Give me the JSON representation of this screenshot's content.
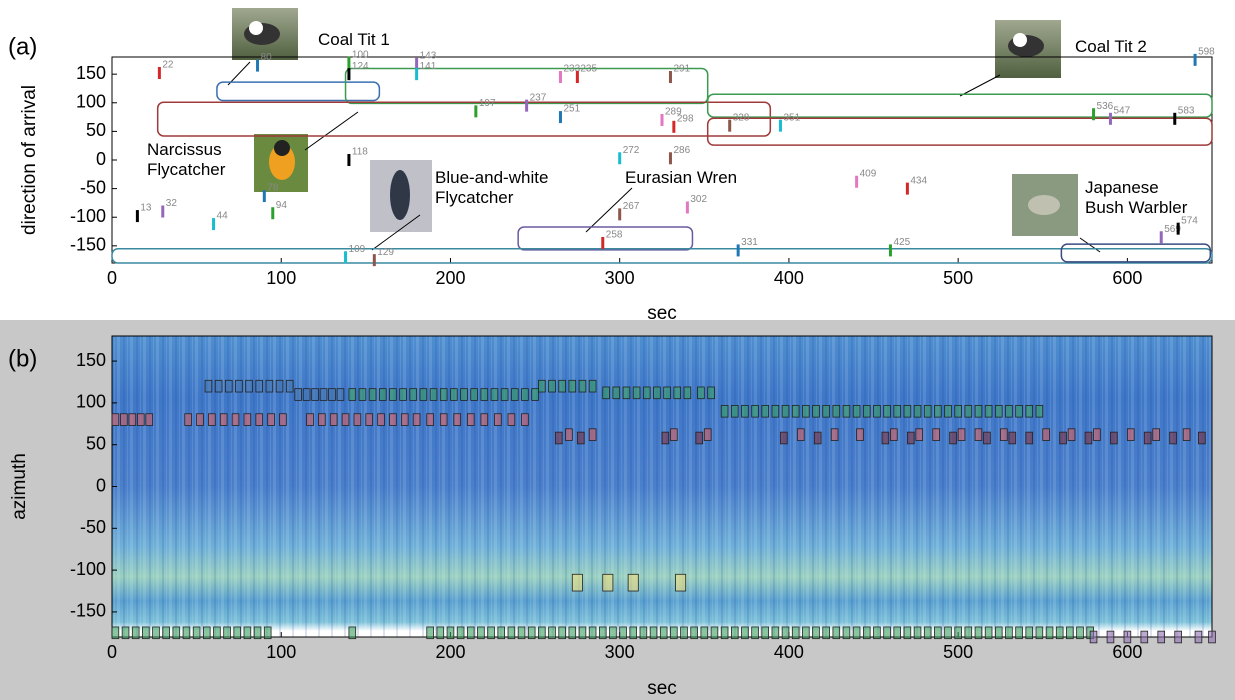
{
  "chart_data": [
    {
      "type": "scatter",
      "panel": "(a)",
      "xlabel": "sec",
      "ylabel": "direction of arrival",
      "xlim": [
        0,
        650
      ],
      "ylim": [
        -180,
        180
      ],
      "xticks": [
        0,
        100,
        200,
        300,
        400,
        500,
        600
      ],
      "yticks": [
        -150,
        -100,
        -50,
        0,
        50,
        100,
        150
      ],
      "colors": [
        "#d62728",
        "#1f77b4",
        "#2ca02c",
        "#9467bd",
        "#000000",
        "#17becf",
        "#8c564b",
        "#e377c2"
      ],
      "series": [
        {
          "x": [
            28,
            86,
            140,
            180,
            140,
            180,
            330,
            265,
            275,
            640,
            580,
            590,
            628,
            395,
            365,
            325,
            332,
            265,
            215,
            245,
            140,
            300,
            330,
            440,
            470,
            90,
            95,
            30,
            15,
            60,
            300,
            340,
            290,
            370,
            460,
            620,
            630,
            138,
            155
          ],
          "values": [
            152,
            165,
            170,
            168,
            150,
            150,
            145,
            145,
            145,
            175,
            80,
            72,
            72,
            60,
            60,
            70,
            58,
            75,
            85,
            95,
            0,
            3,
            3,
            -38,
            -50,
            -63,
            -93,
            -90,
            -98,
            -112,
            -95,
            -83,
            -145,
            -158,
            -158,
            -135,
            -120,
            -170,
            -175
          ],
          "point_labels": [
            22,
            80,
            100,
            143,
            124,
            141,
            291,
            233,
            235,
            598,
            536,
            547,
            583,
            351,
            328,
            289,
            298,
            251,
            197,
            237,
            118,
            272,
            286,
            409,
            434,
            78,
            94,
            32,
            13,
            44,
            267,
            302,
            258,
            331,
            425,
            569,
            574,
            109,
            129
          ]
        }
      ],
      "regions": [
        {
          "color": "#3a6fb0",
          "x": [
            62,
            158
          ],
          "y": [
            104,
            136
          ]
        },
        {
          "color": "#3a9a50",
          "x": [
            138,
            352
          ],
          "y": [
            99,
            160
          ]
        },
        {
          "color": "#a03a3a",
          "x": [
            27,
            389
          ],
          "y": [
            42,
            101
          ]
        },
        {
          "color": "#3a9a50",
          "x": [
            352,
            650
          ],
          "y": [
            75,
            115
          ]
        },
        {
          "color": "#a03a3a",
          "x": [
            352,
            650
          ],
          "y": [
            26,
            73
          ]
        },
        {
          "color": "#6a5aa0",
          "x": [
            240,
            343
          ],
          "y": [
            -157,
            -117
          ]
        },
        {
          "color": "#3a8aa0",
          "x": [
            0,
            650
          ],
          "y": [
            -180,
            -155
          ]
        },
        {
          "color": "#3a4a80",
          "x": [
            561,
            649
          ],
          "y": [
            -178,
            -147
          ]
        }
      ],
      "annotations": [
        "Coal Tit 1",
        "Coal Tit 2",
        "Narcissus Flycatcher",
        "Blue-and-white Flycatcher",
        "Eurasian Wren",
        "Japanese Bush Warbler"
      ]
    },
    {
      "type": "heatmap",
      "panel": "(b)",
      "xlabel": "sec",
      "ylabel": "azimuth",
      "xlim": [
        0,
        650
      ],
      "ylim": [
        -180,
        180
      ],
      "xticks": [
        0,
        100,
        200,
        300,
        400,
        500,
        600
      ],
      "yticks": [
        -150,
        -100,
        -50,
        0,
        50,
        100,
        150
      ],
      "series": [
        {
          "color": "#e06060",
          "y": 80,
          "x": [
            0,
            5,
            10,
            15,
            20,
            43,
            50,
            57,
            64,
            71,
            78,
            85,
            92,
            99,
            115,
            122,
            129,
            136,
            143,
            150,
            157,
            164,
            171,
            178,
            186,
            194,
            202,
            210,
            218,
            226,
            234,
            242
          ]
        },
        {
          "color": "#e06060",
          "y": 62,
          "x": [
            268,
            282,
            330,
            350,
            405,
            425,
            440,
            460,
            475,
            485,
            500,
            510,
            525,
            550,
            565,
            580,
            600,
            615,
            633
          ]
        },
        {
          "color": "#803040",
          "y": 58,
          "x": [
            262,
            275,
            325,
            345,
            395,
            415,
            455,
            470,
            495,
            515,
            530,
            540,
            560,
            575,
            590,
            610,
            625,
            642
          ]
        },
        {
          "color": "#4a78b0",
          "y": 120,
          "x": [
            55,
            61,
            67,
            73,
            79,
            85,
            91,
            97,
            103
          ]
        },
        {
          "color": "#4a78b0",
          "y": 110,
          "x": [
            108,
            113,
            118,
            123,
            128,
            133
          ]
        },
        {
          "color": "#3aa060",
          "y": 110,
          "x": [
            140,
            146,
            152,
            158,
            164,
            170,
            176,
            182,
            188,
            194,
            200,
            206,
            212,
            218,
            224,
            230,
            236,
            242,
            248
          ]
        },
        {
          "color": "#3aa060",
          "y": 120,
          "x": [
            252,
            258,
            264,
            270,
            276,
            282
          ]
        },
        {
          "color": "#3aa060",
          "y": 112,
          "x": [
            290,
            296,
            302,
            308,
            314,
            320,
            326,
            332,
            338,
            346,
            352
          ]
        },
        {
          "color": "#3aa060",
          "y": 90,
          "x": [
            360,
            366,
            372,
            378,
            384,
            390,
            396,
            402,
            408,
            414,
            420,
            426,
            432,
            438,
            444,
            450,
            456,
            462,
            468,
            474,
            480,
            486,
            492,
            498,
            504,
            510,
            516,
            522,
            528,
            534,
            540,
            546
          ]
        },
        {
          "color": "#f0e080",
          "y": -115,
          "x": [
            272,
            290,
            305,
            333
          ]
        },
        {
          "color": "#3aa060",
          "y": -175,
          "x": [
            0,
            6,
            12,
            18,
            24,
            30,
            36,
            42,
            48,
            54,
            60,
            66,
            72,
            78,
            84,
            90,
            140,
            186,
            192,
            198,
            204,
            210,
            216,
            222,
            228,
            234,
            240,
            246,
            252,
            258,
            264,
            270,
            276,
            282,
            288,
            294,
            300,
            306,
            312,
            318,
            324,
            330,
            336,
            342,
            348,
            354,
            360,
            366,
            372,
            378,
            384,
            390,
            396,
            402,
            408,
            414,
            420,
            426,
            432,
            438,
            444,
            450,
            456,
            462,
            468,
            474,
            480,
            486,
            492,
            498,
            504,
            510,
            516,
            522,
            528,
            534,
            540,
            546,
            552,
            558,
            564,
            570,
            576
          ]
        },
        {
          "color": "#9070b0",
          "y": -180,
          "x": [
            578,
            588,
            598,
            608,
            618,
            628,
            640,
            648
          ]
        }
      ]
    }
  ]
}
